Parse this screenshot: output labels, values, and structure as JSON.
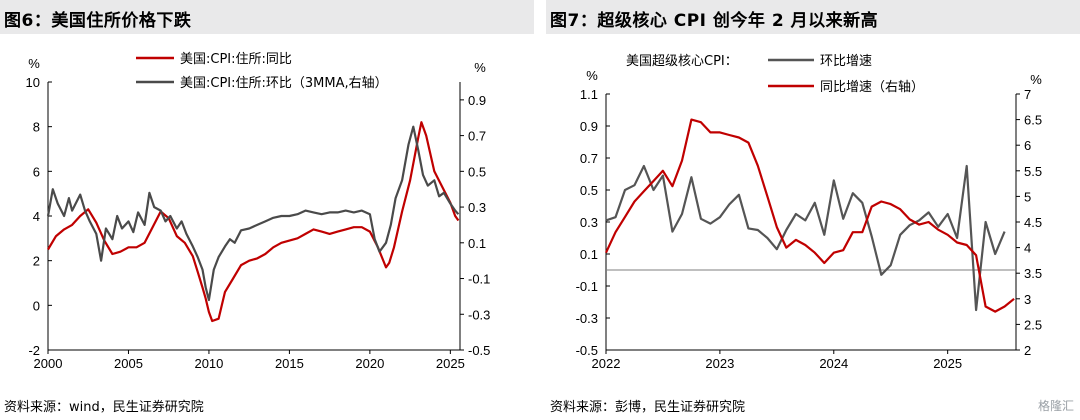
{
  "left": {
    "title": "图6：美国住所价格下跌",
    "source": "资料来源：wind，民生证券研究院",
    "chart_data": {
      "type": "line",
      "ylabel_left": "%",
      "ylabel_right": "%",
      "ylim_left": [
        -2,
        10
      ],
      "ylim_right": [
        -0.5,
        1.0
      ],
      "yticks_left": [
        "10",
        "8",
        "6",
        "4",
        "2",
        "0",
        "-2"
      ],
      "yticks_right": [
        "0.9",
        "0.7",
        "0.5",
        "0.3",
        "0.1",
        "-0.1",
        "-0.3",
        "-0.5"
      ],
      "xticks": [
        "2000",
        "2005",
        "2010",
        "2015",
        "2020",
        "2025"
      ],
      "xlim": [
        2000,
        2025.6
      ],
      "legend": [
        "美国:CPI:住所:同比",
        "美国:CPI:住所:环比（3MMA,右轴）"
      ],
      "series": [
        {
          "name": "美国:CPI:住所:同比",
          "axis": "left",
          "color": "#c00000",
          "points": [
            [
              2000,
              2.5
            ],
            [
              2000.5,
              3.1
            ],
            [
              2001,
              3.4
            ],
            [
              2001.5,
              3.6
            ],
            [
              2002,
              4.0
            ],
            [
              2002.5,
              4.3
            ],
            [
              2003,
              3.7
            ],
            [
              2003.5,
              2.9
            ],
            [
              2004,
              2.3
            ],
            [
              2004.5,
              2.4
            ],
            [
              2005,
              2.6
            ],
            [
              2005.5,
              2.6
            ],
            [
              2006,
              2.8
            ],
            [
              2006.5,
              3.5
            ],
            [
              2007,
              4.2
            ],
            [
              2007.5,
              3.9
            ],
            [
              2008,
              3.1
            ],
            [
              2008.5,
              2.8
            ],
            [
              2009,
              2.2
            ],
            [
              2009.3,
              1.5
            ],
            [
              2009.6,
              0.8
            ],
            [
              2009.8,
              0.3
            ],
            [
              2010,
              -0.3
            ],
            [
              2010.2,
              -0.7
            ],
            [
              2010.6,
              -0.6
            ],
            [
              2010.8,
              0.0
            ],
            [
              2011,
              0.6
            ],
            [
              2011.5,
              1.2
            ],
            [
              2012,
              1.8
            ],
            [
              2012.5,
              2.0
            ],
            [
              2013,
              2.1
            ],
            [
              2013.5,
              2.3
            ],
            [
              2014,
              2.6
            ],
            [
              2014.5,
              2.8
            ],
            [
              2015,
              2.9
            ],
            [
              2015.5,
              3.0
            ],
            [
              2016,
              3.2
            ],
            [
              2016.5,
              3.4
            ],
            [
              2017,
              3.3
            ],
            [
              2017.5,
              3.2
            ],
            [
              2018,
              3.3
            ],
            [
              2018.5,
              3.4
            ],
            [
              2019,
              3.5
            ],
            [
              2019.5,
              3.5
            ],
            [
              2020,
              3.3
            ],
            [
              2020.5,
              2.6
            ],
            [
              2021,
              1.7
            ],
            [
              2021.2,
              1.9
            ],
            [
              2021.5,
              2.6
            ],
            [
              2022,
              4.2
            ],
            [
              2022.5,
              5.6
            ],
            [
              2023,
              7.5
            ],
            [
              2023.2,
              8.2
            ],
            [
              2023.5,
              7.6
            ],
            [
              2024,
              6.0
            ],
            [
              2024.5,
              5.3
            ],
            [
              2025,
              4.6
            ],
            [
              2025.3,
              4.0
            ],
            [
              2025.5,
              3.8
            ]
          ]
        },
        {
          "name": "美国:CPI:住所:环比（3MMA,右轴）",
          "axis": "right",
          "color": "#4a4a4a",
          "points": [
            [
              2000,
              0.25
            ],
            [
              2000.3,
              0.4
            ],
            [
              2000.6,
              0.32
            ],
            [
              2001,
              0.25
            ],
            [
              2001.3,
              0.35
            ],
            [
              2001.5,
              0.28
            ],
            [
              2002,
              0.37
            ],
            [
              2002.3,
              0.28
            ],
            [
              2002.6,
              0.22
            ],
            [
              2003,
              0.15
            ],
            [
              2003.3,
              0.0
            ],
            [
              2003.6,
              0.18
            ],
            [
              2004,
              0.12
            ],
            [
              2004.3,
              0.25
            ],
            [
              2004.6,
              0.18
            ],
            [
              2005,
              0.22
            ],
            [
              2005.3,
              0.16
            ],
            [
              2005.6,
              0.27
            ],
            [
              2006,
              0.2
            ],
            [
              2006.3,
              0.38
            ],
            [
              2006.6,
              0.3
            ],
            [
              2007,
              0.28
            ],
            [
              2007.3,
              0.22
            ],
            [
              2007.6,
              0.25
            ],
            [
              2008,
              0.18
            ],
            [
              2008.3,
              0.22
            ],
            [
              2008.6,
              0.15
            ],
            [
              2009,
              0.08
            ],
            [
              2009.3,
              0.02
            ],
            [
              2009.6,
              -0.05
            ],
            [
              2009.8,
              -0.15
            ],
            [
              2010,
              -0.22
            ],
            [
              2010.3,
              -0.05
            ],
            [
              2010.6,
              0.02
            ],
            [
              2011,
              0.08
            ],
            [
              2011.3,
              0.12
            ],
            [
              2011.6,
              0.1
            ],
            [
              2012,
              0.17
            ],
            [
              2012.5,
              0.18
            ],
            [
              2013,
              0.2
            ],
            [
              2013.5,
              0.22
            ],
            [
              2014,
              0.24
            ],
            [
              2014.5,
              0.25
            ],
            [
              2015,
              0.25
            ],
            [
              2015.5,
              0.26
            ],
            [
              2016,
              0.28
            ],
            [
              2016.5,
              0.27
            ],
            [
              2017,
              0.26
            ],
            [
              2017.5,
              0.27
            ],
            [
              2018,
              0.27
            ],
            [
              2018.5,
              0.28
            ],
            [
              2019,
              0.27
            ],
            [
              2019.5,
              0.28
            ],
            [
              2020,
              0.26
            ],
            [
              2020.3,
              0.12
            ],
            [
              2020.6,
              0.05
            ],
            [
              2021,
              0.1
            ],
            [
              2021.3,
              0.2
            ],
            [
              2021.6,
              0.35
            ],
            [
              2022,
              0.45
            ],
            [
              2022.4,
              0.65
            ],
            [
              2022.7,
              0.75
            ],
            [
              2023,
              0.62
            ],
            [
              2023.3,
              0.48
            ],
            [
              2023.6,
              0.42
            ],
            [
              2024,
              0.45
            ],
            [
              2024.3,
              0.36
            ],
            [
              2024.6,
              0.38
            ],
            [
              2025,
              0.32
            ],
            [
              2025.3,
              0.28
            ],
            [
              2025.5,
              0.26
            ]
          ]
        }
      ]
    }
  },
  "right": {
    "title": "图7：超级核心 CPI 创今年  2 月以来新高",
    "source": "资料来源：彭博，民生证券研究院",
    "watermark": "格隆汇",
    "chart_data": {
      "type": "line",
      "ylabel_left": "%",
      "ylabel_right": "%",
      "ylim_left": [
        -0.5,
        1.1
      ],
      "ylim_right": [
        2,
        7
      ],
      "yticks_left": [
        "1.1",
        "0.9",
        "0.7",
        "0.5",
        "0.3",
        "0.1",
        "-0.1",
        "-0.3",
        "-0.5"
      ],
      "yticks_right": [
        "7",
        "6.5",
        "6",
        "5.5",
        "5",
        "4.5",
        "4",
        "3.5",
        "3",
        "2.5",
        "2"
      ],
      "xticks": [
        "2022",
        "2023",
        "2024",
        "2025"
      ],
      "xlim": [
        2022,
        2025.6
      ],
      "legend_title": "美国超级核心CPI：",
      "legend": [
        "环比增速",
        "同比增速（右轴）"
      ],
      "series": [
        {
          "name": "环比增速",
          "axis": "left",
          "color": "#555555",
          "points": [
            [
              2022,
              0.31
            ],
            [
              2022.083,
              0.33
            ],
            [
              2022.167,
              0.5
            ],
            [
              2022.25,
              0.53
            ],
            [
              2022.333,
              0.65
            ],
            [
              2022.417,
              0.5
            ],
            [
              2022.5,
              0.59
            ],
            [
              2022.583,
              0.24
            ],
            [
              2022.667,
              0.35
            ],
            [
              2022.75,
              0.58
            ],
            [
              2022.833,
              0.32
            ],
            [
              2022.917,
              0.29
            ],
            [
              2023,
              0.33
            ],
            [
              2023.083,
              0.41
            ],
            [
              2023.167,
              0.47
            ],
            [
              2023.25,
              0.26
            ],
            [
              2023.333,
              0.25
            ],
            [
              2023.417,
              0.2
            ],
            [
              2023.5,
              0.13
            ],
            [
              2023.583,
              0.25
            ],
            [
              2023.667,
              0.35
            ],
            [
              2023.75,
              0.31
            ],
            [
              2023.833,
              0.42
            ],
            [
              2023.917,
              0.22
            ],
            [
              2024,
              0.56
            ],
            [
              2024.083,
              0.32
            ],
            [
              2024.167,
              0.48
            ],
            [
              2024.25,
              0.42
            ],
            [
              2024.333,
              0.21
            ],
            [
              2024.417,
              -0.03
            ],
            [
              2024.5,
              0.03
            ],
            [
              2024.583,
              0.22
            ],
            [
              2024.667,
              0.28
            ],
            [
              2024.75,
              0.31
            ],
            [
              2024.833,
              0.36
            ],
            [
              2024.917,
              0.27
            ],
            [
              2025,
              0.35
            ],
            [
              2025.083,
              0.2
            ],
            [
              2025.167,
              0.65
            ],
            [
              2025.25,
              -0.25
            ],
            [
              2025.333,
              0.3
            ],
            [
              2025.417,
              0.1
            ],
            [
              2025.5,
              0.24
            ]
          ]
        },
        {
          "name": "同比增速（右轴）",
          "axis": "right",
          "color": "#c00000",
          "points": [
            [
              2022,
              3.9
            ],
            [
              2022.083,
              4.3
            ],
            [
              2022.167,
              4.6
            ],
            [
              2022.25,
              4.9
            ],
            [
              2022.333,
              5.1
            ],
            [
              2022.417,
              5.3
            ],
            [
              2022.5,
              5.5
            ],
            [
              2022.583,
              5.2
            ],
            [
              2022.667,
              5.7
            ],
            [
              2022.75,
              6.5
            ],
            [
              2022.833,
              6.45
            ],
            [
              2022.917,
              6.25
            ],
            [
              2023,
              6.25
            ],
            [
              2023.083,
              6.2
            ],
            [
              2023.167,
              6.15
            ],
            [
              2023.25,
              6.05
            ],
            [
              2023.333,
              5.6
            ],
            [
              2023.417,
              5.0
            ],
            [
              2023.5,
              4.4
            ],
            [
              2023.583,
              4.0
            ],
            [
              2023.667,
              4.15
            ],
            [
              2023.75,
              4.05
            ],
            [
              2023.833,
              3.9
            ],
            [
              2023.917,
              3.7
            ],
            [
              2024,
              3.9
            ],
            [
              2024.083,
              3.95
            ],
            [
              2024.167,
              4.3
            ],
            [
              2024.25,
              4.3
            ],
            [
              2024.333,
              4.8
            ],
            [
              2024.417,
              4.9
            ],
            [
              2024.5,
              4.85
            ],
            [
              2024.583,
              4.75
            ],
            [
              2024.667,
              4.55
            ],
            [
              2024.75,
              4.45
            ],
            [
              2024.833,
              4.5
            ],
            [
              2024.917,
              4.35
            ],
            [
              2025,
              4.25
            ],
            [
              2025.083,
              4.1
            ],
            [
              2025.167,
              4.05
            ],
            [
              2025.25,
              3.85
            ],
            [
              2025.333,
              2.85
            ],
            [
              2025.417,
              2.75
            ],
            [
              2025.5,
              2.85
            ],
            [
              2025.583,
              3.0
            ]
          ]
        }
      ]
    }
  }
}
